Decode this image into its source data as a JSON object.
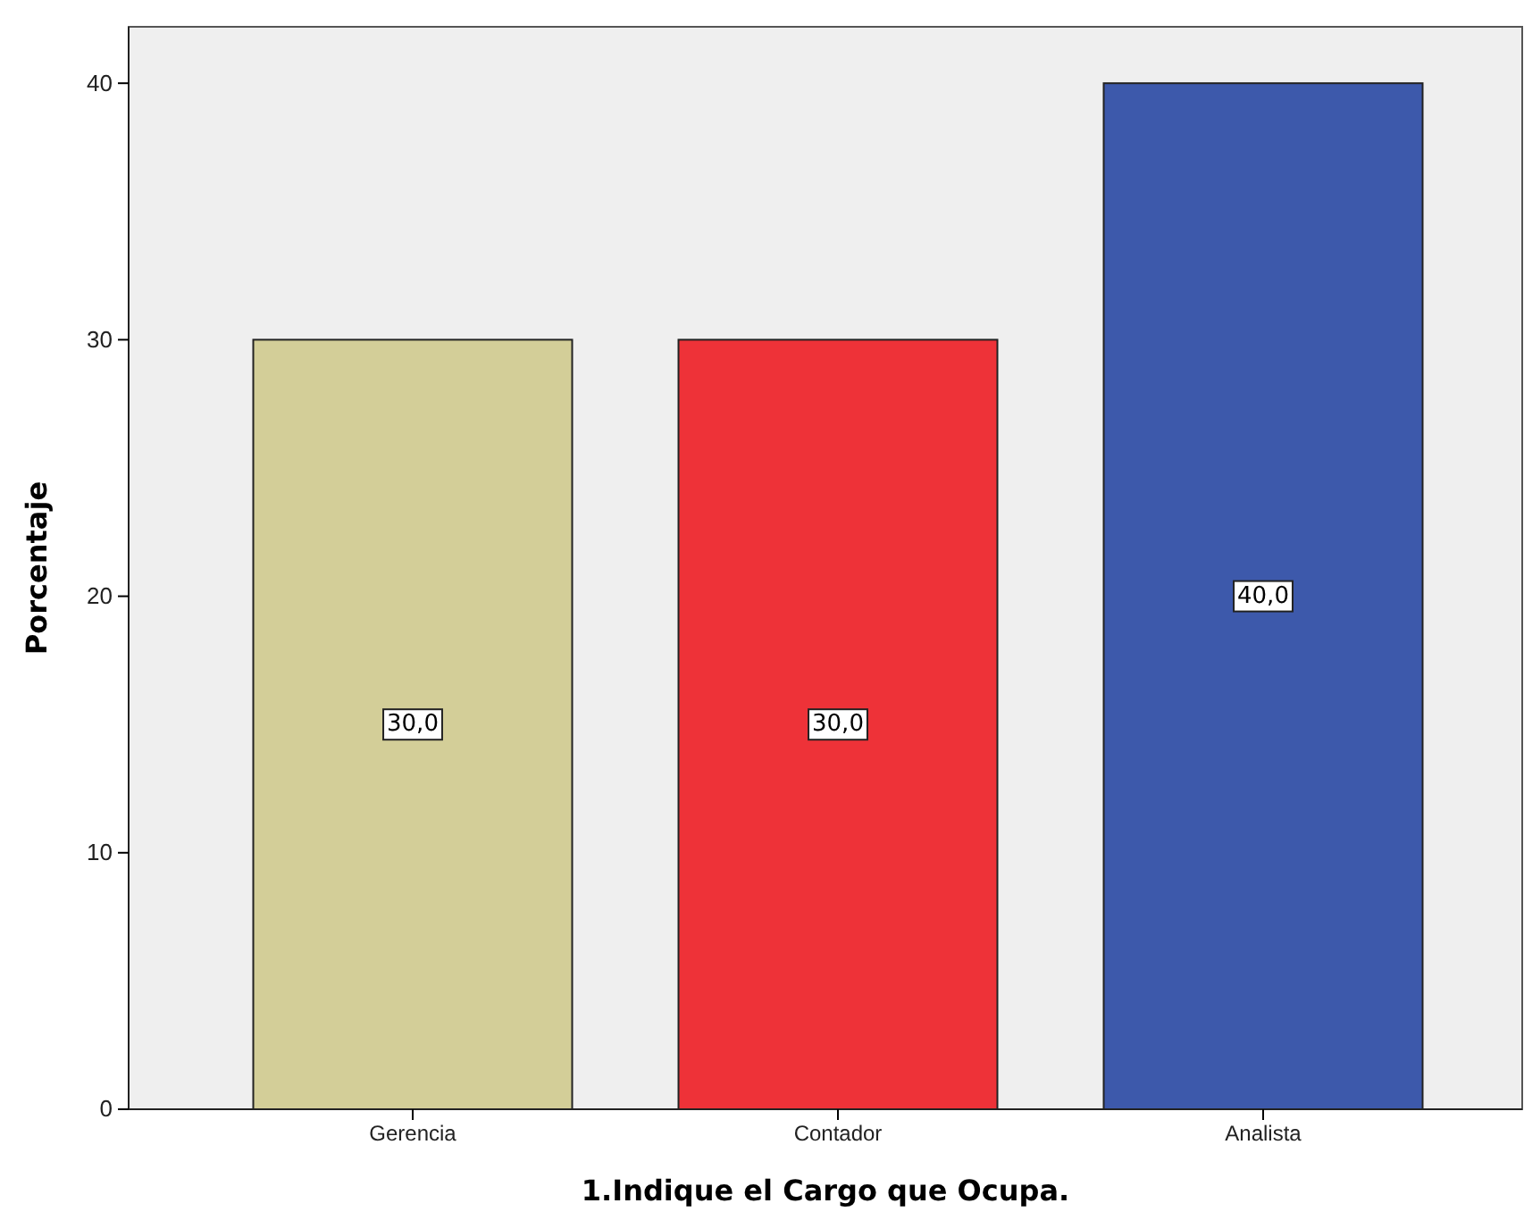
{
  "chart_data": {
    "type": "bar",
    "xlabel": "1.Indique el Cargo que Ocupa.",
    "ylabel": "Porcentaje",
    "categories": [
      "Gerencia",
      "Contador",
      "Analista"
    ],
    "values": [
      30,
      30,
      40
    ],
    "colors": [
      "#d3ce98",
      "#ee3238",
      "#3d59ab"
    ],
    "value_labels": [
      "30,0",
      "30,0",
      "40,0"
    ],
    "ylim": [
      0,
      42.2
    ],
    "yticks": [
      0,
      10,
      20,
      30,
      40
    ]
  }
}
